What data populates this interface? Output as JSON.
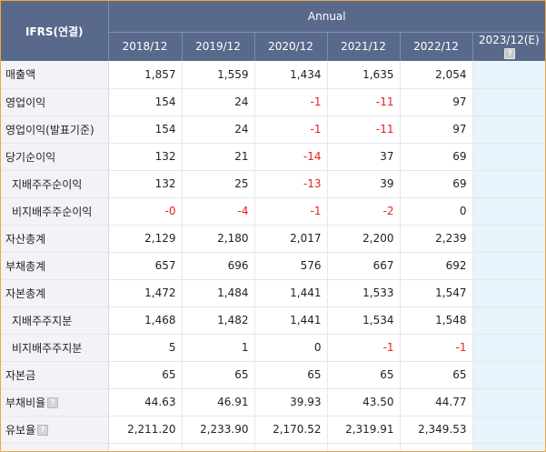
{
  "header": {
    "corner": "IFRS(연결)",
    "group": "Annual",
    "years": [
      "2018/12",
      "2019/12",
      "2020/12",
      "2021/12",
      "2022/12",
      "2023/12(E)"
    ]
  },
  "rows": [
    {
      "label": "매출액",
      "sub": false,
      "help": false,
      "values": [
        "1,857",
        "1,559",
        "1,434",
        "1,635",
        "2,054",
        ""
      ]
    },
    {
      "label": "영업이익",
      "sub": false,
      "help": false,
      "values": [
        "154",
        "24",
        "-1",
        "-11",
        "97",
        ""
      ]
    },
    {
      "label": "영업이익(발표기준)",
      "sub": false,
      "help": false,
      "values": [
        "154",
        "24",
        "-1",
        "-11",
        "97",
        ""
      ]
    },
    {
      "label": "당기순이익",
      "sub": false,
      "help": false,
      "values": [
        "132",
        "21",
        "-14",
        "37",
        "69",
        ""
      ]
    },
    {
      "label": "지배주주순이익",
      "sub": true,
      "help": false,
      "values": [
        "132",
        "25",
        "-13",
        "39",
        "69",
        ""
      ]
    },
    {
      "label": "비지배주주순이익",
      "sub": true,
      "help": false,
      "values": [
        "-0",
        "-4",
        "-1",
        "-2",
        "0",
        ""
      ]
    },
    {
      "label": "자산총계",
      "sub": false,
      "help": false,
      "values": [
        "2,129",
        "2,180",
        "2,017",
        "2,200",
        "2,239",
        ""
      ]
    },
    {
      "label": "부채총계",
      "sub": false,
      "help": false,
      "values": [
        "657",
        "696",
        "576",
        "667",
        "692",
        ""
      ]
    },
    {
      "label": "자본총계",
      "sub": false,
      "help": false,
      "values": [
        "1,472",
        "1,484",
        "1,441",
        "1,533",
        "1,547",
        ""
      ]
    },
    {
      "label": "지배주주지분",
      "sub": true,
      "help": false,
      "values": [
        "1,468",
        "1,482",
        "1,441",
        "1,534",
        "1,548",
        ""
      ]
    },
    {
      "label": "비지배주주지분",
      "sub": true,
      "help": false,
      "values": [
        "5",
        "1",
        "0",
        "-1",
        "-1",
        ""
      ]
    },
    {
      "label": "자본금",
      "sub": false,
      "help": false,
      "values": [
        "65",
        "65",
        "65",
        "65",
        "65",
        ""
      ]
    },
    {
      "label": "부채비율",
      "sub": false,
      "help": true,
      "values": [
        "44.63",
        "46.91",
        "39.93",
        "43.50",
        "44.77",
        ""
      ]
    },
    {
      "label": "유보율",
      "sub": false,
      "help": true,
      "values": [
        "2,211.20",
        "2,233.90",
        "2,170.52",
        "2,319.91",
        "2,349.53",
        ""
      ]
    },
    {
      "label": "",
      "sub": false,
      "help": false,
      "values": [
        "",
        "",
        "",
        "",
        "",
        ""
      ]
    }
  ],
  "colors": {
    "header_bg": "#59698c",
    "negative": "#e32222",
    "estimate_bg": "#e6f4fb",
    "frame": "#f0a73a"
  }
}
